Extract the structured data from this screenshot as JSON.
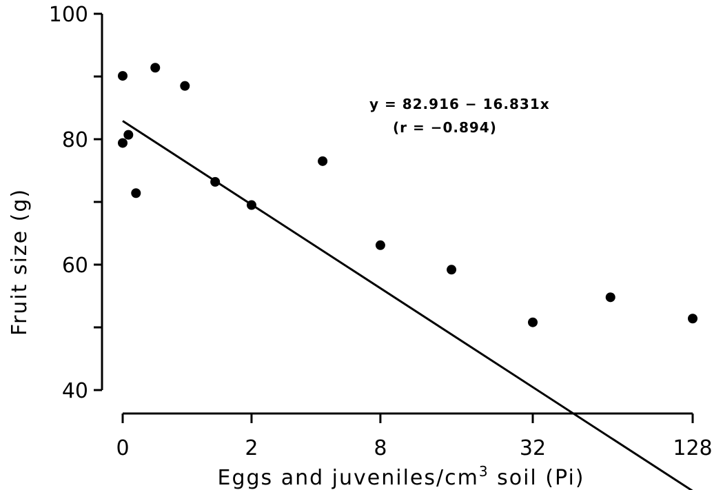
{
  "chart_data": {
    "type": "scatter",
    "xlabel": "Eggs and juveniles/cm",
    "xlabel_superscript": "3",
    "xlabel_suffix": " soil (Pi)",
    "ylabel": "Fruit size (g)",
    "x_scale": "log2(Pi+1)",
    "x_ticks": [
      0,
      2,
      8,
      32,
      128
    ],
    "y_ticks": [
      40,
      60,
      80,
      100
    ],
    "ylim": [
      40,
      100
    ],
    "xlim": [
      0,
      128
    ],
    "grid": false,
    "points": [
      {
        "x": 0,
        "y": 90.1
      },
      {
        "x": 0,
        "y": 79.4
      },
      {
        "x": 0.05,
        "y": 80.7
      },
      {
        "x": 0.12,
        "y": 71.4
      },
      {
        "x": 0.32,
        "y": 91.4
      },
      {
        "x": 0.7,
        "y": 88.5
      },
      {
        "x": 1.2,
        "y": 73.2
      },
      {
        "x": 2.0,
        "y": 69.5
      },
      {
        "x": 4.5,
        "y": 76.5
      },
      {
        "x": 8.0,
        "y": 63.1
      },
      {
        "x": 15.5,
        "y": 59.2
      },
      {
        "x": 32,
        "y": 50.8
      },
      {
        "x": 63,
        "y": 54.8
      },
      {
        "x": 128,
        "y": 51.4
      }
    ],
    "fit": {
      "intercept": 82.916,
      "slope": -16.831,
      "equation": "y = 82.916 − 16.831x",
      "r_text": "(r = −0.894)"
    }
  }
}
